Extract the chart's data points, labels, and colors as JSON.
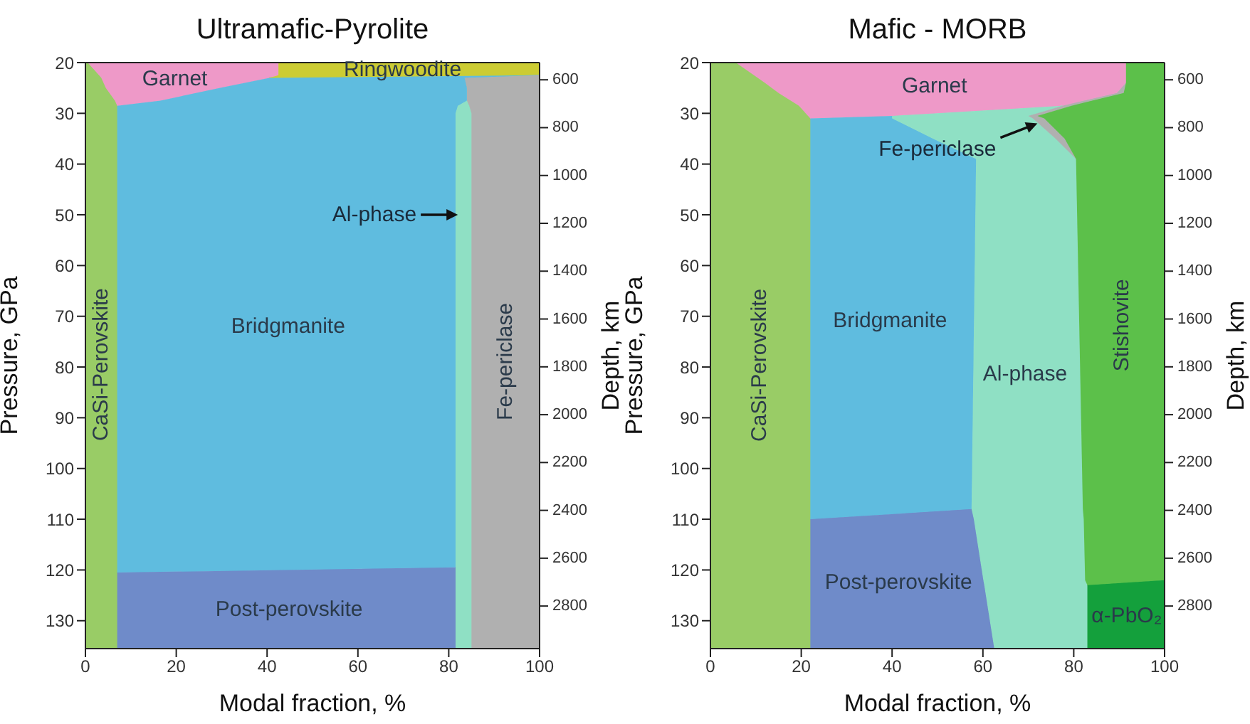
{
  "chart_data": [
    {
      "type": "area",
      "title": "Ultramafic-Pyrolite",
      "xlabel": "Modal fraction, %",
      "ylabel": "Pressure, GPa",
      "y2label": "Depth, km",
      "stacked": true,
      "orientation": "horizontal",
      "x": [
        20,
        22.5,
        23,
        25,
        27.5,
        28.5,
        30,
        119.5,
        120.5,
        135.5
      ],
      "series": [
        {
          "name": "CaSi-Perovskite",
          "color": "#99cc66",
          "values": [
            0.5,
            3,
            3.5,
            4.5,
            6.5,
            7,
            7,
            7,
            7,
            7
          ]
        },
        {
          "name": "Garnet",
          "color": "#ee99c8",
          "values": [
            42,
            39.5,
            37,
            25,
            10,
            0,
            null,
            null,
            null,
            null
          ]
        },
        {
          "name": "Ringwoodite",
          "color": "#cccc33",
          "values": [
            57.5,
            57.5,
            0,
            null,
            null,
            null,
            null,
            null,
            null,
            null
          ]
        },
        {
          "name": "Bridgmanite",
          "color": "#5fbcdf",
          "values": [
            null,
            0,
            43,
            54.5,
            67.5,
            75,
            74.5,
            74.5,
            0,
            null
          ]
        },
        {
          "name": "Post-perovskite",
          "color": "#6f8bc9",
          "values": [
            null,
            null,
            null,
            null,
            null,
            null,
            null,
            0,
            74.5,
            74.5
          ]
        },
        {
          "color": "#8fe0c4",
          "values": [
            null,
            null,
            null,
            null,
            0,
            2.5,
            3.5,
            3.5,
            3.5,
            3.5
          ]
        },
        {
          "name": "Fe-periclase",
          "color": "#b0b0b0",
          "values": [
            null,
            0,
            16.5,
            16,
            16,
            15.5,
            15,
            15,
            15,
            15
          ]
        }
      ],
      "xlim": [
        0,
        100
      ],
      "xticks": [
        0,
        20,
        40,
        60,
        80,
        100
      ],
      "ylim": [
        135.5,
        20
      ],
      "yticks": [
        20,
        30,
        40,
        50,
        60,
        70,
        80,
        90,
        100,
        110,
        120,
        130
      ],
      "y2lim": [
        2978,
        528
      ],
      "y2ticks": [
        600,
        800,
        1000,
        1200,
        1400,
        1600,
        1800,
        2000,
        2200,
        2400,
        2600,
        2800
      ],
      "annotations": [
        {
          "text": "Al-phase",
          "x": 82,
          "y": 50
        }
      ]
    },
    {
      "type": "area",
      "title": "Mafic - MORB",
      "xlabel": "Modal fraction, %",
      "ylabel": "Pressure, GPa",
      "y2label": "Depth, km",
      "stacked": true,
      "orientation": "horizontal",
      "x": [
        20,
        24,
        26,
        28.5,
        30.5,
        31,
        35,
        39,
        108,
        110,
        122,
        123,
        135.5
      ],
      "series": [
        {
          "name": "CaSi-Perovskite",
          "color": "#99cc66",
          "values": [
            5.6,
            12,
            15,
            19.5,
            21.5,
            22,
            22,
            22,
            22,
            22,
            22,
            22,
            22
          ]
        },
        {
          "name": "Garnet",
          "color": "#ee99c8",
          "values": [
            85.9,
            79.5,
            74.5,
            58,
            18.5,
            0,
            null,
            null,
            null,
            null,
            null,
            null,
            null
          ]
        },
        {
          "name": "Bridgmanite",
          "color": "#5fbcdf",
          "values": [
            null,
            null,
            null,
            null,
            0,
            18,
            27,
            36.5,
            35.5,
            0,
            null,
            null,
            null
          ]
        },
        {
          "name": "Post-perovskite",
          "color": "#6f8bc9",
          "values": [
            null,
            null,
            null,
            null,
            null,
            null,
            null,
            null,
            0,
            36,
            38.1,
            38.3,
            40.5
          ]
        },
        {
          "name": "Al-phase",
          "color": "#8fe0c4",
          "values": [
            null,
            null,
            null,
            0,
            30,
            31,
            27,
            22,
            24.5,
            24.2,
            22.4,
            22.7,
            20.5
          ]
        },
        {
          "color": "#b0b0b0",
          "values": [
            null,
            0,
            1.5,
            2,
            2,
            2.5,
            2,
            0,
            null,
            null,
            null,
            null,
            null
          ]
        },
        {
          "name": "Stishovite",
          "color": "#5cc04a",
          "values": [
            8.5,
            8.5,
            9,
            20.5,
            28,
            26.5,
            22,
            19.5,
            18,
            17.8,
            17.5,
            0,
            null
          ]
        },
        {
          "name": "α-PbO₂",
          "color": "#14a03c",
          "values": [
            null,
            null,
            null,
            null,
            null,
            null,
            null,
            null,
            null,
            null,
            0,
            17,
            17
          ]
        }
      ],
      "xlim": [
        0,
        100
      ],
      "xticks": [
        0,
        20,
        40,
        60,
        80,
        100
      ],
      "ylim": [
        135.5,
        20
      ],
      "yticks": [
        20,
        30,
        40,
        50,
        60,
        70,
        80,
        90,
        100,
        110,
        120,
        130
      ],
      "y2lim": [
        2978,
        528
      ],
      "y2ticks": [
        600,
        800,
        1000,
        1200,
        1400,
        1600,
        1800,
        2000,
        2200,
        2400,
        2600,
        2800
      ],
      "annotations": [
        {
          "text": "Fe-periclase",
          "x": 72,
          "y": 32
        }
      ]
    }
  ]
}
